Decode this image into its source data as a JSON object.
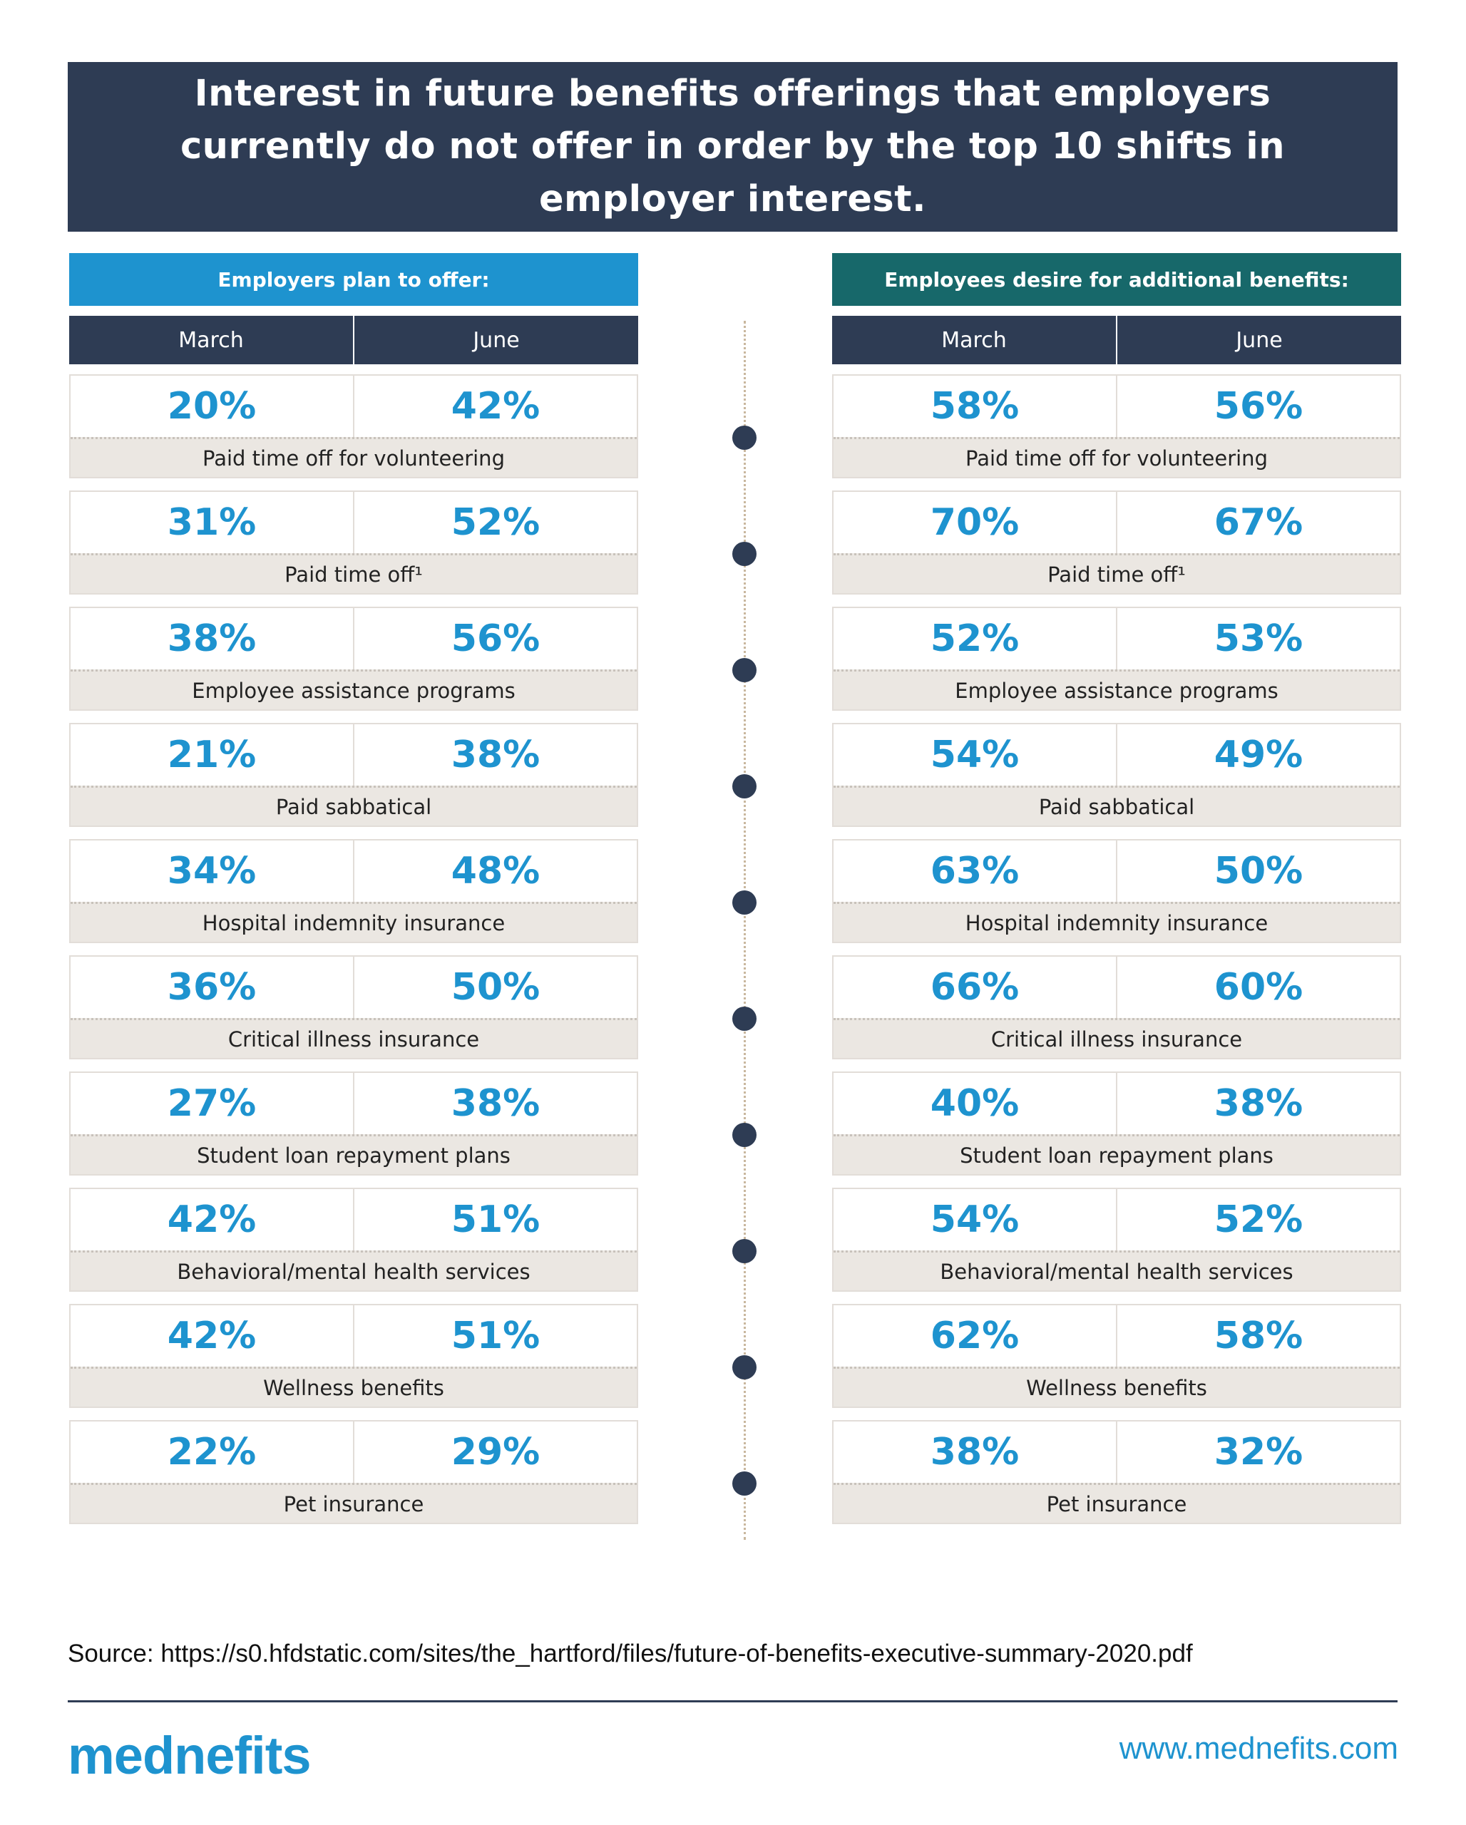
{
  "title": "Interest in future benefits offerings that employers currently do not offer in order by the top 10 shifts in employer interest.",
  "chart_data": {
    "type": "table",
    "title": "Interest in future benefits offerings that employers currently do not offer in order by the top 10 shifts in employer interest.",
    "columns": [
      "March",
      "June"
    ],
    "categories": [
      "Paid time off for volunteering",
      "Paid time off¹",
      "Employee assistance programs",
      "Paid sabbatical",
      "Hospital indemnity insurance",
      "Critical illness insurance",
      "Student loan repayment plans",
      "Behavioral/mental health services",
      "Wellness benefits",
      "Pet insurance"
    ],
    "panels": [
      {
        "name": "Employers plan to offer:",
        "color": "#1e93cf",
        "series": [
          {
            "name": "March",
            "values": [
              20,
              31,
              38,
              21,
              34,
              36,
              27,
              42,
              42,
              22
            ]
          },
          {
            "name": "June",
            "values": [
              42,
              52,
              56,
              38,
              48,
              50,
              38,
              51,
              51,
              29
            ]
          }
        ]
      },
      {
        "name": "Employees desire for additional benefits:",
        "color": "#17686a",
        "series": [
          {
            "name": "March",
            "values": [
              58,
              70,
              52,
              54,
              63,
              66,
              40,
              54,
              62,
              38
            ]
          },
          {
            "name": "June",
            "values": [
              56,
              67,
              53,
              49,
              50,
              60,
              38,
              52,
              58,
              32
            ]
          }
        ]
      }
    ],
    "unit": "%"
  },
  "footer": {
    "source": "Source: https://s0.hfdstatic.com/sites/the_hartford/files/future-of-benefits-executive-summary-2020.pdf",
    "logo": "mednefits",
    "website": "www.mednefits.com"
  }
}
